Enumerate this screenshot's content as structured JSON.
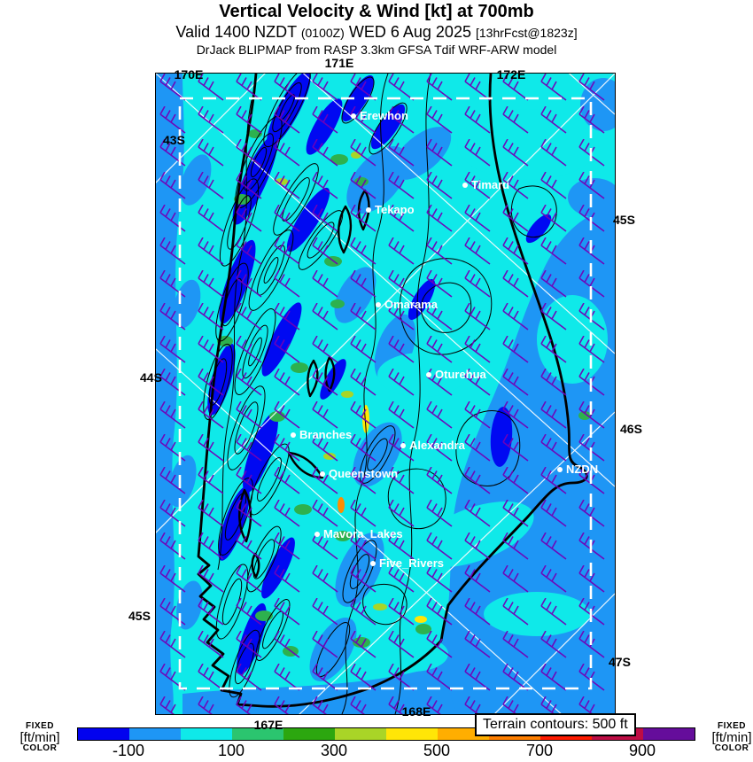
{
  "header": {
    "title": "Vertical Velocity & Wind [kt] at 700mb",
    "valid_prefix": "Valid 1400 NZDT",
    "valid_utc": "(0100Z)",
    "valid_date": "WED 6 Aug 2025",
    "valid_fcst": "[13hrFcst@1823z]",
    "model_line": "DrJack BLIPMAP from RASP 3.3km GFSA Tdif WRF-ARW model"
  },
  "map": {
    "grid_labels": [
      {
        "text": "170E"
      },
      {
        "text": "171E"
      },
      {
        "text": "172E"
      },
      {
        "text": "43S"
      },
      {
        "text": "44S"
      },
      {
        "text": "45S"
      },
      {
        "text": "45S"
      },
      {
        "text": "46S"
      },
      {
        "text": "47S"
      },
      {
        "text": "167E"
      },
      {
        "text": "168E"
      }
    ],
    "places": [
      {
        "name": "Erewhon"
      },
      {
        "name": "Timaru"
      },
      {
        "name": "Tekapo"
      },
      {
        "name": "Omarama"
      },
      {
        "name": "Oturehua"
      },
      {
        "name": "Branches"
      },
      {
        "name": "Alexandra"
      },
      {
        "name": "Queenstown"
      },
      {
        "name": "NZDN"
      },
      {
        "name": "Mavora_Lakes"
      },
      {
        "name": "Five_Rivers"
      }
    ],
    "terrain_note": "Terrain contours: 500 ft",
    "legend_colors": {
      "background_cyan": "#0FE9E9",
      "weak_sink_blue": "#1E96F5",
      "strong_sink_blue": "#0009F2",
      "wind_barb_purple": "#7000B8",
      "contour_black": "#000000",
      "domain_boundary_white": "#FFFFFF"
    }
  },
  "colorbar": {
    "side_label": {
      "line1": "FIXED",
      "line2": "[ft/min]",
      "line3": "COLOR"
    },
    "unit": "ft/min",
    "ticks": [
      "-100",
      "100",
      "300",
      "500",
      "700",
      "900"
    ],
    "segments": [
      "#0202EF",
      "#1E96F5",
      "#0FE9E9",
      "#2BC56F",
      "#2CA70F",
      "#A9D527",
      "#FFE607",
      "#FFAE00",
      "#FF7F00",
      "#FF1B00",
      "#BE0D44",
      "#650D9B"
    ],
    "scale": {
      "min": -200,
      "max": 1000,
      "step": 100
    }
  }
}
